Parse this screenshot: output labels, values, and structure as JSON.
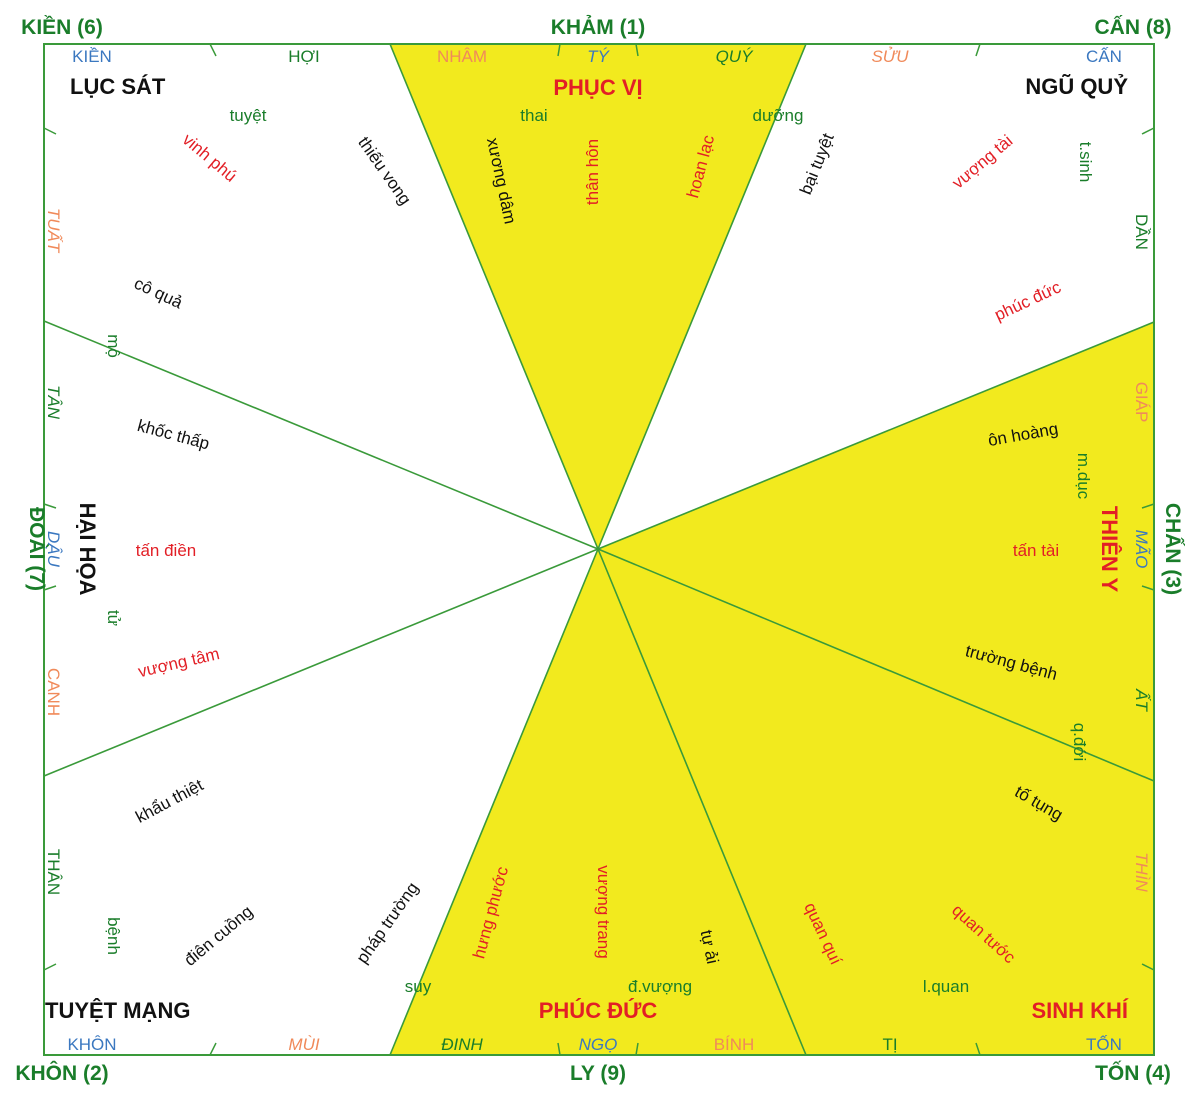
{
  "colors": {
    "border": "#3a9a3a",
    "yellow": "#f2ea1e",
    "green": "#1a7d2a",
    "red": "#e21f26",
    "black": "#111111",
    "blue": "#3b78c0",
    "orange": "#f08a5a"
  },
  "corners": {
    "top_left": "KIỀN (6)",
    "top_center": "KHẢM (1)",
    "top_right": "CẤN (8)",
    "left_middle": "ĐOÀI (7)",
    "right_middle": "CHẤN (3)",
    "bottom_left": "KHÔN (2)",
    "bottom_center": "LY (9)",
    "bottom_right": "TỐN (4)"
  },
  "zones": {
    "phuc_vi": "PHỤC VỊ",
    "luc_sat": "LỤC SÁT",
    "ngu_quy": "NGŨ QUỶ",
    "hai_hoa": "HẠI HỌA",
    "thien_y": "THIÊN Y",
    "tuyet_mang": "TUYỆT MẠNG",
    "phuc_duc": "PHÚC ĐỨC",
    "sinh_khi": "SINH KHÍ"
  },
  "sectors": {
    "top": [
      "KIỀN",
      "HỢI",
      "NHÂM",
      "TÝ",
      "QUÝ",
      "SỬU",
      "CẤN"
    ],
    "bottom": [
      "KHÔN",
      "MÙI",
      "ĐINH",
      "NGỌ",
      "BÍNH",
      "TỊ",
      "TỐN"
    ],
    "left": [
      "TUẤT",
      "TÂN",
      "DẬU",
      "CANH",
      "THÂN"
    ],
    "right": [
      "DẦN",
      "GIÁP",
      "MÃO",
      "ẤT",
      "THÌN"
    ]
  },
  "stars": {
    "tuyet": "tuyệt",
    "thai": "thai",
    "duong": "dưỡng",
    "t_sinh": "t.sinh",
    "mo": "mộ",
    "m_duc": "m.dục",
    "tu": "tử",
    "q_doi": "q.đới",
    "benh": "bệnh",
    "suy": "suy",
    "d_vuong": "đ.vượng",
    "l_quan": "l.quan",
    "vinh_phu": "vinh phú",
    "thieu_vong": "thiếu vong",
    "xuong_dam": "xương dâm",
    "than_hon": "thân hôn",
    "hoan_lac": "hoan lạc",
    "bai_tuyet": "bại tuyệt",
    "vuong_tai": "vượng tài",
    "co_qua": "cô quả",
    "phuc_duc_star": "phúc đức",
    "khoc_thap": "khốc thấp",
    "on_hoang": "ôn hoàng",
    "tan_dien": "tấn điền",
    "tan_tai": "tấn tài",
    "vuong_tam": "vượng tâm",
    "truong_benh": "trường bệnh",
    "khau_thiet": "khẩu thiệt",
    "to_tung": "tố tụng",
    "dien_cuong": "điên cuồng",
    "phap_truong": "pháp trường",
    "hung_phuoc": "hưng phước",
    "vuong_trang": "vượng trang",
    "tu_ai": "tự ải",
    "quan_qui": "quan quí",
    "quan_tuoc": "quan tước"
  }
}
